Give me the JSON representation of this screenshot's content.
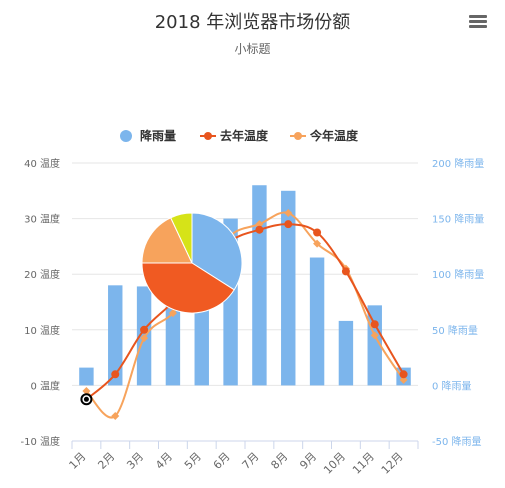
{
  "title": "2018 年浏览器市场份额",
  "subtitle": "小标题",
  "menu_icon": "hamburger-menu-icon",
  "legend_placement": "top-center",
  "colors": {
    "rainfall": "#7cb5ec",
    "last_year": "#e8551e",
    "this_year": "#f7a35c",
    "pie": [
      "#7cb5ec",
      "#f05a22",
      "#f7a35c",
      "#d6e318"
    ]
  },
  "chart_data": {
    "type": "combo",
    "categories": [
      "1月",
      "2月",
      "3月",
      "4月",
      "5月",
      "6月",
      "7月",
      "8月",
      "9月",
      "10月",
      "11月",
      "12月"
    ],
    "y_left": {
      "ticks": [
        "40 温度",
        "30 温度",
        "20 温度",
        "10 温度",
        "0 温度",
        "-10 温度"
      ],
      "range": [
        -10,
        40
      ]
    },
    "y_right": {
      "ticks": [
        "200 降雨量",
        "150 降雨量",
        "100 降雨量",
        "50 降雨量",
        "0 降雨量",
        "-50 降雨量"
      ],
      "range": [
        -50,
        200
      ]
    },
    "grid": true,
    "series": [
      {
        "name": "降雨量",
        "type": "column",
        "axis": "right",
        "values": [
          16,
          90,
          89,
          90,
          76,
          150,
          180,
          175,
          115,
          58,
          72,
          16
        ]
      },
      {
        "name": "去年温度",
        "type": "spline",
        "axis": "left",
        "values": [
          -2.5,
          2,
          10,
          15,
          21,
          26,
          28,
          29,
          27.5,
          20.5,
          11,
          2
        ]
      },
      {
        "name": "今年温度",
        "type": "spline",
        "axis": "left",
        "values": [
          -1,
          -5.5,
          8.5,
          13,
          20,
          27,
          29,
          31,
          25.5,
          21,
          9,
          1
        ]
      }
    ],
    "pie": {
      "values": [
        34,
        41,
        18,
        7
      ]
    }
  }
}
